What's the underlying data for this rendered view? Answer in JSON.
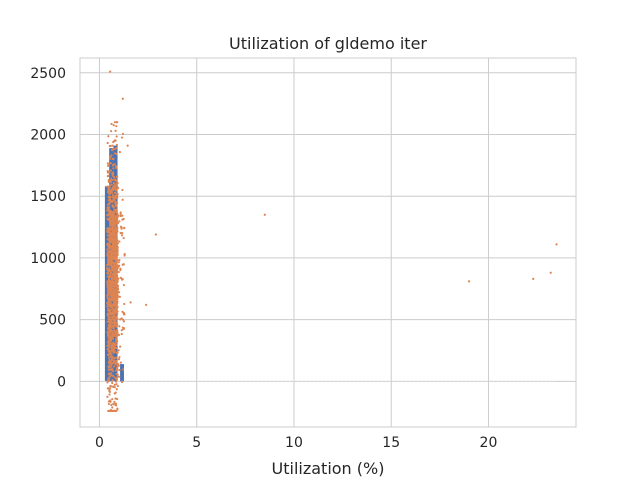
{
  "chart_data": {
    "type": "scatter",
    "title": "Utilization of gldemo iter",
    "xlabel": "Utilization (%)",
    "ylabel": "",
    "xlim": [
      -1.0,
      24.5
    ],
    "ylim": [
      -370,
      2620
    ],
    "x_ticks": [
      0,
      5,
      10,
      15,
      20
    ],
    "y_ticks": [
      0,
      500,
      1000,
      1500,
      2000,
      2500
    ],
    "grid": true,
    "legend": "none",
    "colors": {
      "bars": "#4c72b0",
      "points": "#dd8452",
      "grid": "#cccccc",
      "spine": "#cccccc"
    },
    "series": [
      {
        "kind": "histogram-bars",
        "bars": [
          {
            "x_start": 0.28,
            "x_end": 0.5,
            "value": 1580
          },
          {
            "x_start": 0.5,
            "x_end": 0.72,
            "value": 1890
          },
          {
            "x_start": 0.72,
            "x_end": 0.93,
            "value": 1910
          },
          {
            "x_start": 1.06,
            "x_end": 1.26,
            "value": 140
          }
        ]
      },
      {
        "kind": "points",
        "cluster": {
          "x_range": [
            0.3,
            1.2
          ],
          "y_range": [
            -240,
            2100
          ],
          "count": 1400,
          "y_mean": 830,
          "y_sd": 480
        },
        "outliers": [
          {
            "x": 0.55,
            "y": 2510
          },
          {
            "x": 1.2,
            "y": 2290
          },
          {
            "x": 1.45,
            "y": 1910
          },
          {
            "x": 2.9,
            "y": 1190
          },
          {
            "x": 8.5,
            "y": 1350
          },
          {
            "x": 2.4,
            "y": 620
          },
          {
            "x": 1.6,
            "y": 640
          },
          {
            "x": 19.0,
            "y": 810
          },
          {
            "x": 22.3,
            "y": 830
          },
          {
            "x": 23.2,
            "y": 880
          },
          {
            "x": 23.5,
            "y": 1110
          }
        ]
      },
      {
        "kind": "baseline",
        "y": 0,
        "x_range": [
          0.3,
          23.5
        ]
      }
    ]
  }
}
